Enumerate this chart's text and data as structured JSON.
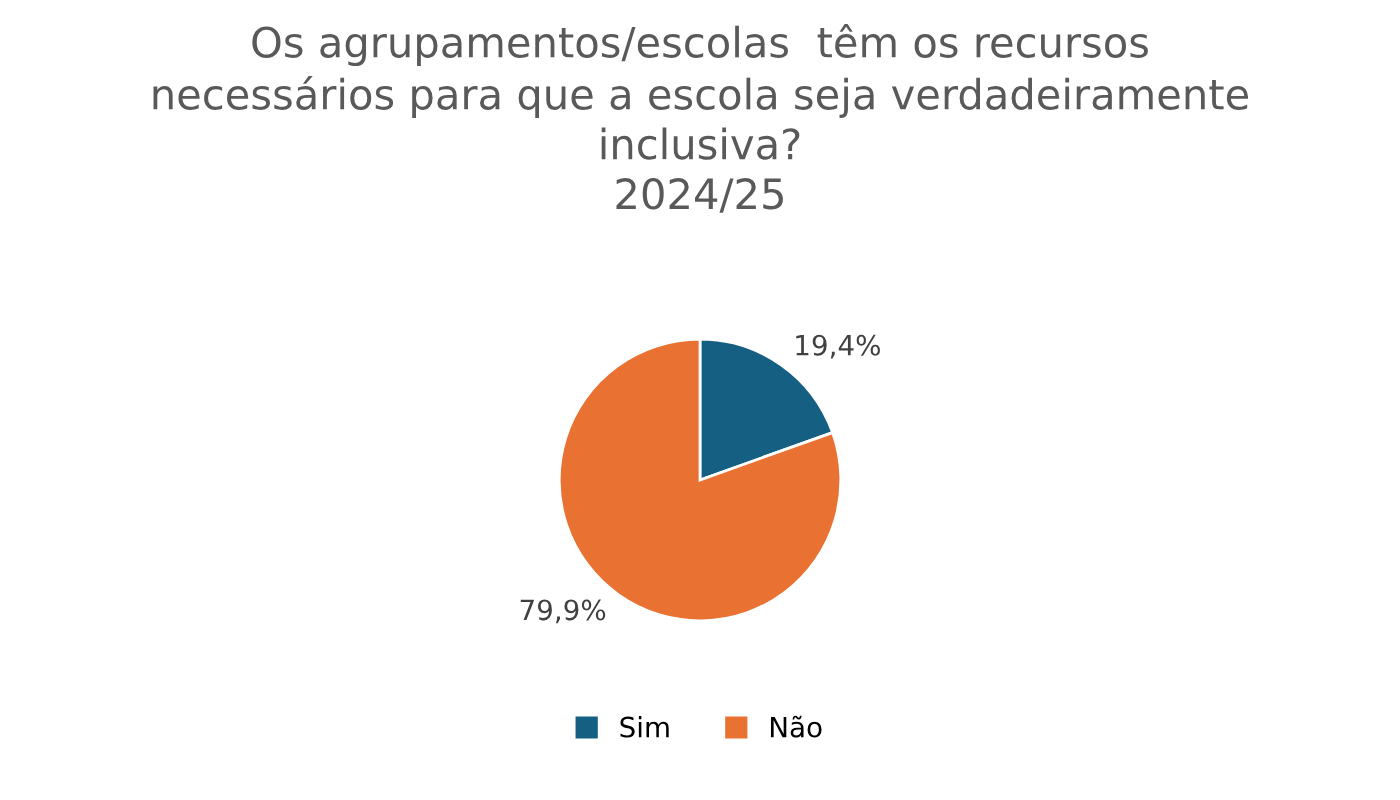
{
  "chart_data": {
    "type": "pie",
    "title": "Os agrupamentos/escolas  têm os recursos\nnecessários para que a escola seja verdadeiramente\ninclusiva?\n2024/25",
    "categories": [
      "Sim",
      "Não"
    ],
    "values": [
      19.4,
      79.9
    ],
    "colors": [
      "#156082",
      "#e97132"
    ],
    "value_labels": [
      "19,4%",
      "79,9%"
    ],
    "legend": "bottom"
  }
}
